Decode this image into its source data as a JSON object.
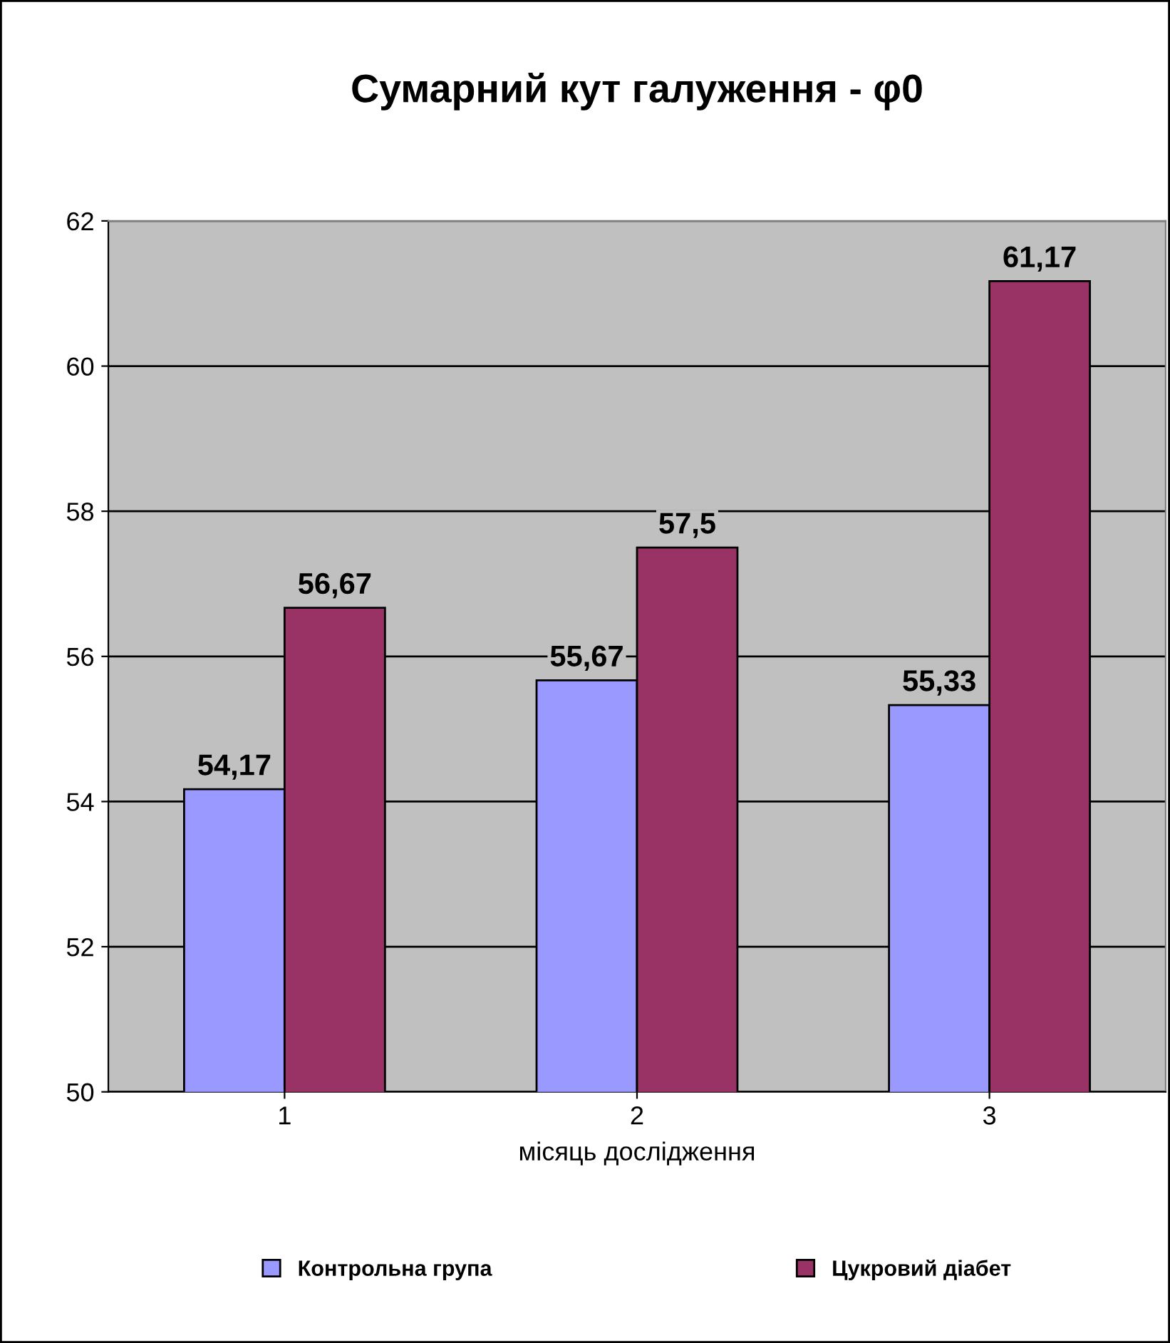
{
  "chart_data": {
    "type": "bar",
    "title": "Сумарний кут галуження - φ0",
    "xlabel": "місяць дослідження",
    "categories": [
      "1",
      "2",
      "3"
    ],
    "series": [
      {
        "name": "Контрольна група",
        "color": "#9999ff",
        "values": [
          54.17,
          55.67,
          55.33
        ],
        "value_labels": [
          "54,17",
          "55,67",
          "55,33"
        ]
      },
      {
        "name": "Цукровий діабет",
        "color": "#993366",
        "values": [
          56.67,
          57.5,
          61.17
        ],
        "value_labels": [
          "56,67",
          "57,5",
          "61,17"
        ]
      }
    ],
    "ylim": [
      50,
      62
    ],
    "yticks": [
      50,
      52,
      54,
      56,
      58,
      60,
      62
    ],
    "grid": "y",
    "legend": "bottom"
  }
}
